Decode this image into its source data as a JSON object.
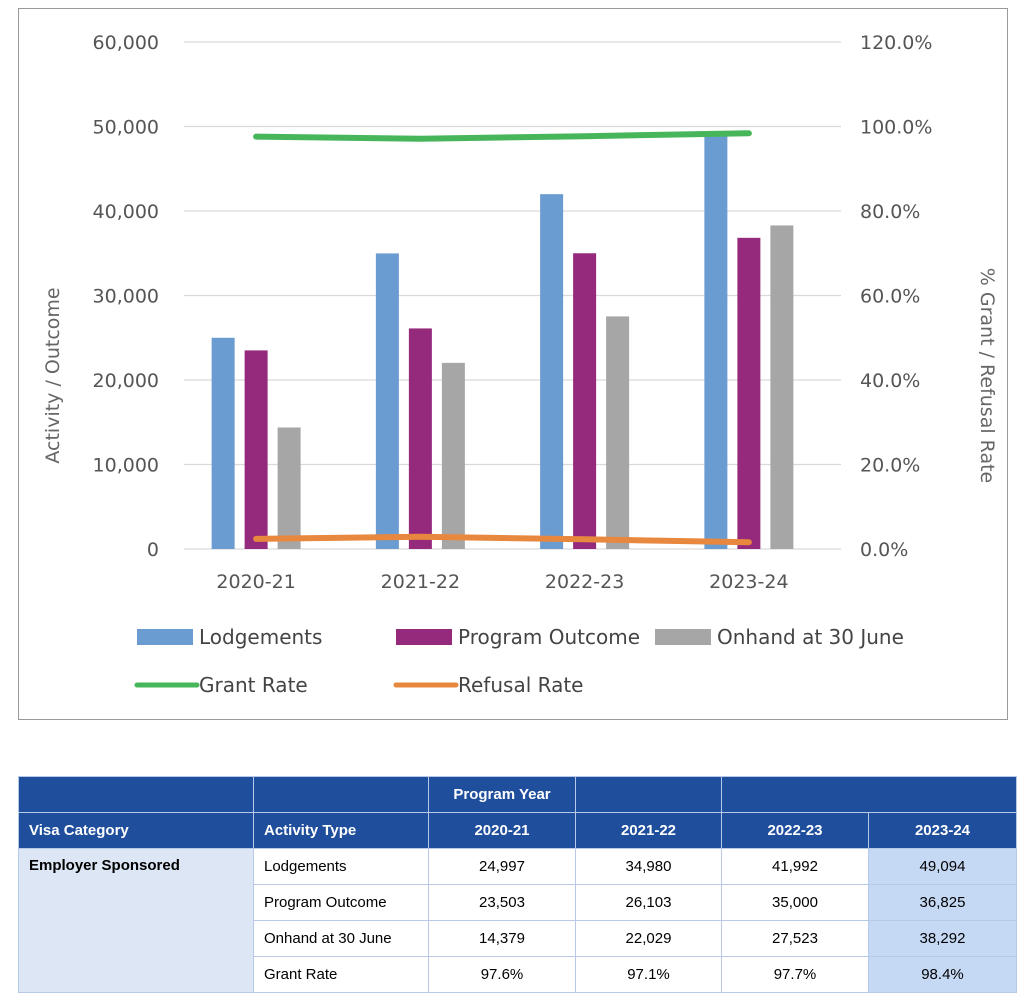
{
  "chart_data": {
    "type": "bar",
    "categories": [
      "2020-21",
      "2021-22",
      "2022-23",
      "2023-24"
    ],
    "series": [
      {
        "name": "Lodgements",
        "kind": "bar",
        "axis": "left",
        "color": "#6a9bd1",
        "values": [
          24997,
          34980,
          41992,
          49094
        ]
      },
      {
        "name": "Program Outcome",
        "kind": "bar",
        "axis": "left",
        "color": "#952a7c",
        "values": [
          23503,
          26103,
          35000,
          36825
        ]
      },
      {
        "name": "Onhand at 30 June",
        "kind": "bar",
        "axis": "left",
        "color": "#a6a6a6",
        "values": [
          14379,
          22029,
          27523,
          38292
        ]
      },
      {
        "name": "Grant Rate",
        "kind": "line",
        "axis": "right",
        "color": "#47b65a",
        "values": [
          97.6,
          97.1,
          97.7,
          98.4
        ]
      },
      {
        "name": "Refusal Rate",
        "kind": "line",
        "axis": "right",
        "color": "#e8883f",
        "values": [
          2.4,
          2.9,
          2.3,
          1.6
        ]
      }
    ],
    "y_left": {
      "label": "Activity / Outcome",
      "ylim": [
        0,
        60000
      ],
      "ticks": [
        "0",
        "10,000",
        "20,000",
        "30,000",
        "40,000",
        "50,000",
        "60,000"
      ]
    },
    "y_right": {
      "label": "% Grant / Refusal Rate",
      "ylim": [
        0,
        120
      ],
      "ticks": [
        "0.0%",
        "20.0%",
        "40.0%",
        "60.0%",
        "80.0%",
        "100.0%",
        "120.0%"
      ]
    },
    "grid": true,
    "legend_position": "bottom"
  },
  "table": {
    "top_header": {
      "program_year": "Program Year"
    },
    "columns": [
      "Visa Category",
      "Activity Type",
      "2020-21",
      "2021-22",
      "2022-23",
      "2023-24"
    ],
    "category": "Employer Sponsored",
    "rows": [
      {
        "activity": "Lodgements",
        "values": [
          "24,997",
          "34,980",
          "41,992",
          "49,094"
        ]
      },
      {
        "activity": "Program Outcome",
        "values": [
          "23,503",
          "26,103",
          "35,000",
          "36,825"
        ]
      },
      {
        "activity": "Onhand at 30 June",
        "values": [
          "14,379",
          "22,029",
          "27,523",
          "38,292"
        ]
      },
      {
        "activity": "Grant Rate",
        "values": [
          "97.6%",
          "97.1%",
          "97.7%",
          "98.4%"
        ]
      }
    ]
  }
}
